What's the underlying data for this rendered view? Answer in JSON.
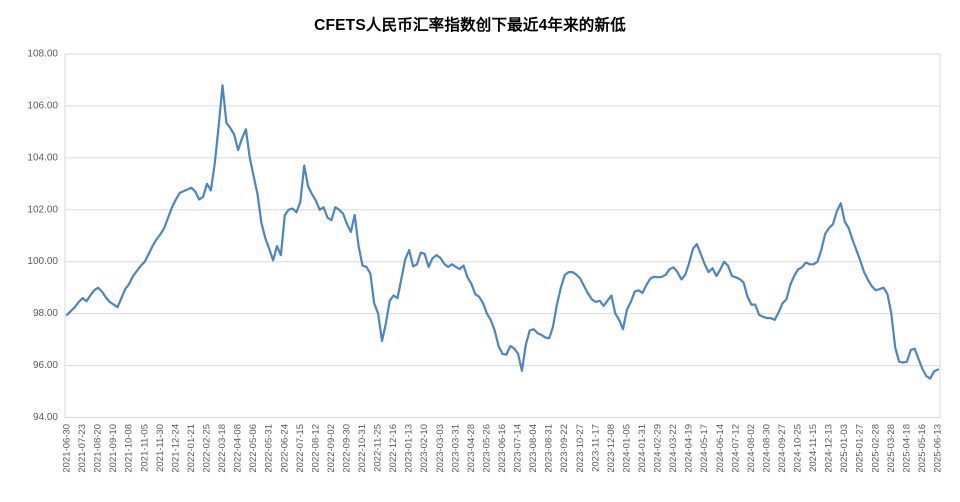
{
  "chart_data": {
    "type": "line",
    "title": "CFETS人民币汇率指数创下最近4年来的新低",
    "ylim": [
      94,
      108
    ],
    "ytick_step": 2,
    "y_tick_labels": [
      "108.00",
      "106.00",
      "104.00",
      "102.00",
      "100.00",
      "98.00",
      "96.00",
      "94.00"
    ],
    "grid": true,
    "legend_position": "none",
    "points_per_label": 4,
    "axis_label_color": "#595959",
    "grid_color": "#d9d9d9",
    "axis_line_color": "#bfbfbf",
    "title_color": "#000000",
    "x_labels": [
      "2021-06-30",
      "2021-07-23",
      "2021-08-20",
      "2021-09-10",
      "2021-10-08",
      "2021-11-05",
      "2021-11-30",
      "2021-12-24",
      "2022-01-21",
      "2022-02-25",
      "2022-03-18",
      "2022-04-08",
      "2022-05-06",
      "2022-05-31",
      "2022-06-24",
      "2022-07-15",
      "2022-08-12",
      "2022-09-02",
      "2022-09-30",
      "2022-10-31",
      "2022-11-25",
      "2022-12-16",
      "2023-01-13",
      "2023-02-10",
      "2023-03-03",
      "2023-03-31",
      "2023-04-28",
      "2023-05-26",
      "2023-06-16",
      "2023-07-14",
      "2023-08-04",
      "2023-08-31",
      "2023-09-22",
      "2023-10-27",
      "2023-11-17",
      "2023-12-08",
      "2024-01-05",
      "2024-01-31",
      "2024-02-29",
      "2024-03-22",
      "2024-04-19",
      "2024-05-17",
      "2024-06-14",
      "2024-07-12",
      "2024-08-02",
      "2024-08-30",
      "2024-09-27",
      "2024-10-25",
      "2024-11-15",
      "2024-12-13",
      "2025-01-03",
      "2025-01-27",
      "2025-02-28",
      "2025-03-28",
      "2025-04-18",
      "2025-05-16",
      "2025-06-13"
    ],
    "series": [
      {
        "name": "CFETS人民币汇率指数",
        "color": "#4a86c6",
        "values": [
          97.95,
          98.1,
          98.25,
          98.45,
          98.6,
          98.48,
          98.7,
          98.9,
          99.0,
          98.85,
          98.62,
          98.45,
          98.35,
          98.25,
          98.6,
          98.95,
          99.15,
          99.45,
          99.65,
          99.85,
          100.0,
          100.3,
          100.6,
          100.85,
          101.05,
          101.3,
          101.7,
          102.1,
          102.4,
          102.65,
          102.72,
          102.78,
          102.85,
          102.7,
          102.4,
          102.5,
          103.0,
          102.75,
          103.8,
          105.2,
          106.8,
          105.35,
          105.15,
          104.9,
          104.3,
          104.75,
          105.1,
          104.0,
          103.3,
          102.6,
          101.5,
          100.9,
          100.5,
          100.05,
          100.6,
          100.25,
          101.8,
          102.0,
          102.05,
          101.9,
          102.3,
          103.7,
          102.9,
          102.6,
          102.35,
          102.0,
          102.1,
          101.7,
          101.6,
          102.1,
          102.0,
          101.85,
          101.45,
          101.15,
          101.8,
          100.6,
          99.85,
          99.8,
          99.55,
          98.4,
          98.0,
          96.95,
          97.6,
          98.5,
          98.7,
          98.6,
          99.35,
          100.1,
          100.45,
          99.82,
          99.9,
          100.35,
          100.3,
          99.8,
          100.13,
          100.25,
          100.15,
          99.92,
          99.8,
          99.9,
          99.8,
          99.72,
          99.85,
          99.4,
          99.15,
          98.75,
          98.65,
          98.4,
          98.0,
          97.75,
          97.35,
          96.75,
          96.45,
          96.42,
          96.75,
          96.66,
          96.45,
          95.8,
          96.8,
          97.35,
          97.4,
          97.25,
          97.18,
          97.08,
          97.05,
          97.5,
          98.35,
          99.0,
          99.48,
          99.6,
          99.6,
          99.5,
          99.35,
          99.05,
          98.78,
          98.55,
          98.45,
          98.5,
          98.3,
          98.5,
          98.7,
          98.0,
          97.75,
          97.4,
          98.15,
          98.45,
          98.85,
          98.9,
          98.8,
          99.1,
          99.35,
          99.42,
          99.4,
          99.42,
          99.5,
          99.72,
          99.78,
          99.6,
          99.32,
          99.5,
          99.95,
          100.5,
          100.68,
          100.3,
          99.9,
          99.6,
          99.75,
          99.45,
          99.7,
          100.0,
          99.85,
          99.45,
          99.4,
          99.33,
          99.2,
          98.65,
          98.35,
          98.35,
          97.95,
          97.88,
          97.83,
          97.83,
          97.76,
          98.05,
          98.4,
          98.55,
          99.1,
          99.45,
          99.7,
          99.78,
          99.97,
          99.9,
          99.9,
          100.0,
          100.45,
          101.07,
          101.3,
          101.45,
          101.95,
          102.25,
          101.55,
          101.3,
          100.85,
          100.45,
          100.05,
          99.6,
          99.3,
          99.05,
          98.9,
          98.95,
          99.0,
          98.75,
          98.0,
          96.7,
          96.15,
          96.12,
          96.15,
          96.6,
          96.65,
          96.25,
          95.87,
          95.6,
          95.5,
          95.78,
          95.85
        ]
      }
    ]
  }
}
